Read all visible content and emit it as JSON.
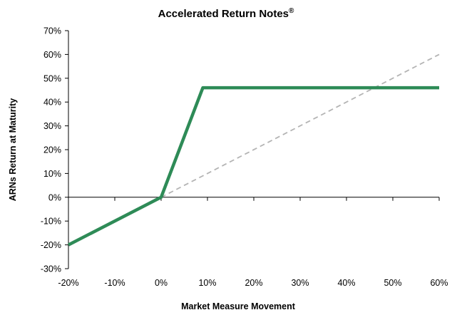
{
  "chart_data": {
    "type": "line",
    "title": "Accelerated Return Notes",
    "title_mark": "®",
    "xlabel": "Market Measure Movement",
    "ylabel": "ARNs Return at Maturity",
    "xlim": [
      -20,
      60
    ],
    "ylim": [
      -30,
      70
    ],
    "x_ticks": [
      "-20%",
      "-10%",
      "0%",
      "10%",
      "20%",
      "30%",
      "40%",
      "50%",
      "60%"
    ],
    "x_tick_values": [
      -20,
      -10,
      0,
      10,
      20,
      30,
      40,
      50,
      60
    ],
    "y_ticks": [
      "70%",
      "60%",
      "50%",
      "40%",
      "30%",
      "20%",
      "10%",
      "0%",
      "-10%",
      "-20%",
      "-30%"
    ],
    "y_tick_values": [
      70,
      60,
      50,
      40,
      30,
      20,
      10,
      0,
      -10,
      -20,
      -30
    ],
    "grid": false,
    "series": [
      {
        "style": "solid",
        "color": "#2e8b57",
        "points": [
          {
            "x": -20,
            "y": -20
          },
          {
            "x": 0,
            "y": 0
          },
          {
            "x": 9,
            "y": 46
          },
          {
            "x": 60,
            "y": 46
          }
        ]
      },
      {
        "style": "dashed",
        "color": "#b4b4b4",
        "points": [
          {
            "x": 0,
            "y": 0
          },
          {
            "x": 60,
            "y": 60
          }
        ]
      }
    ]
  }
}
